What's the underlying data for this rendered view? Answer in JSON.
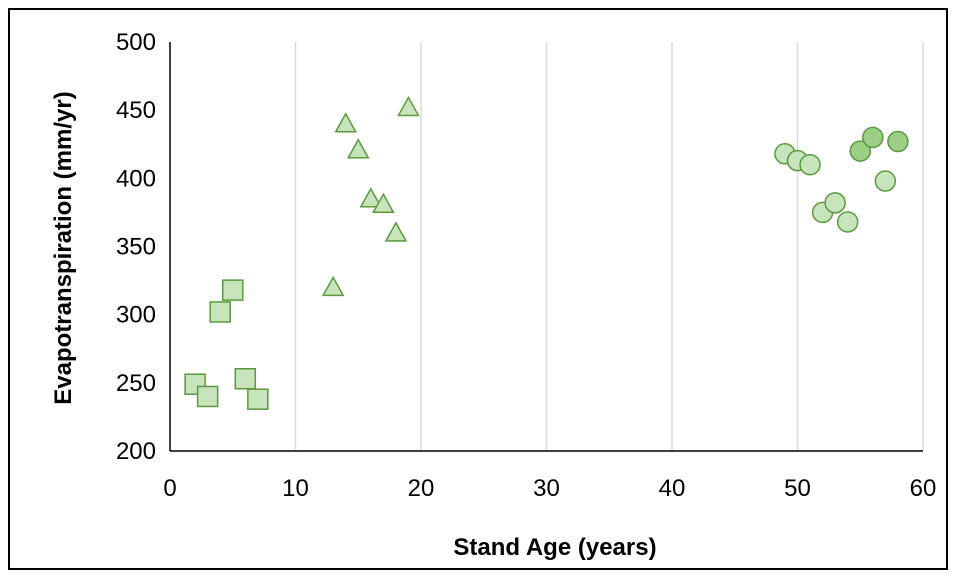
{
  "chart_data": {
    "type": "scatter",
    "xlabel": "Stand Age (years)",
    "ylabel": "Evapotranspiration (mm/yr)",
    "xlim": [
      0,
      60
    ],
    "ylim": [
      200,
      500
    ],
    "x_ticks": [
      "0",
      "10",
      "20",
      "30",
      "40",
      "50",
      "60"
    ],
    "y_ticks": [
      "200",
      "250",
      "300",
      "350",
      "400",
      "450",
      "500"
    ],
    "grid": "vertical",
    "legend": "none",
    "series": [
      {
        "marker": "square",
        "color": "#c8e4bc",
        "edge_color": "#5a9a3c",
        "points": [
          {
            "x": 2,
            "y": 249
          },
          {
            "x": 3,
            "y": 240
          },
          {
            "x": 4,
            "y": 302
          },
          {
            "x": 5,
            "y": 318
          },
          {
            "x": 6,
            "y": 253
          },
          {
            "x": 7,
            "y": 238
          }
        ]
      },
      {
        "marker": "triangle",
        "color": "#c8e4bc",
        "edge_color": "#5a9a3c",
        "points": [
          {
            "x": 13,
            "y": 320
          },
          {
            "x": 14,
            "y": 440
          },
          {
            "x": 15,
            "y": 421
          },
          {
            "x": 16,
            "y": 385
          },
          {
            "x": 17,
            "y": 381
          },
          {
            "x": 18,
            "y": 360
          },
          {
            "x": 19,
            "y": 452
          }
        ]
      },
      {
        "marker": "circle",
        "color_light": "#c8e4bc",
        "color_dark": "#9ccf85",
        "edge_color": "#5a9a3c",
        "points": [
          {
            "x": 49,
            "y": 418,
            "shade": "light"
          },
          {
            "x": 50,
            "y": 413,
            "shade": "light"
          },
          {
            "x": 51,
            "y": 410,
            "shade": "light"
          },
          {
            "x": 52,
            "y": 375,
            "shade": "light"
          },
          {
            "x": 53,
            "y": 382,
            "shade": "light"
          },
          {
            "x": 54,
            "y": 368,
            "shade": "light"
          },
          {
            "x": 55,
            "y": 420,
            "shade": "dark"
          },
          {
            "x": 56,
            "y": 430,
            "shade": "dark"
          },
          {
            "x": 57,
            "y": 398,
            "shade": "light"
          },
          {
            "x": 58,
            "y": 427,
            "shade": "dark"
          }
        ]
      }
    ]
  }
}
